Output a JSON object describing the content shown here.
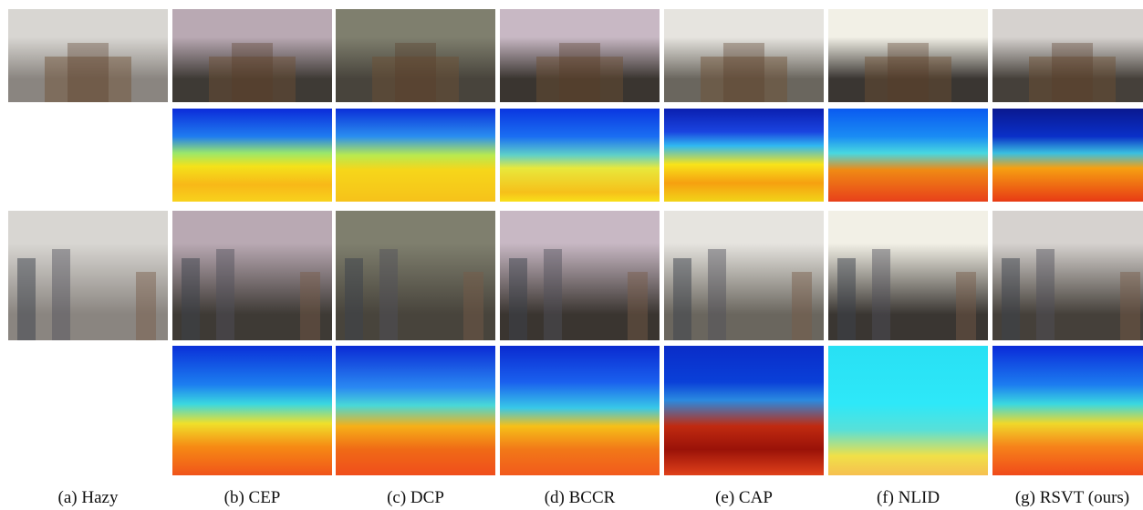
{
  "captions": [
    "(a) Hazy",
    "(b) CEP",
    "(c) DCP",
    "(d) BCCR",
    "(e) CAP",
    "(f) NLID",
    "(g) RSVT (ours)"
  ]
}
